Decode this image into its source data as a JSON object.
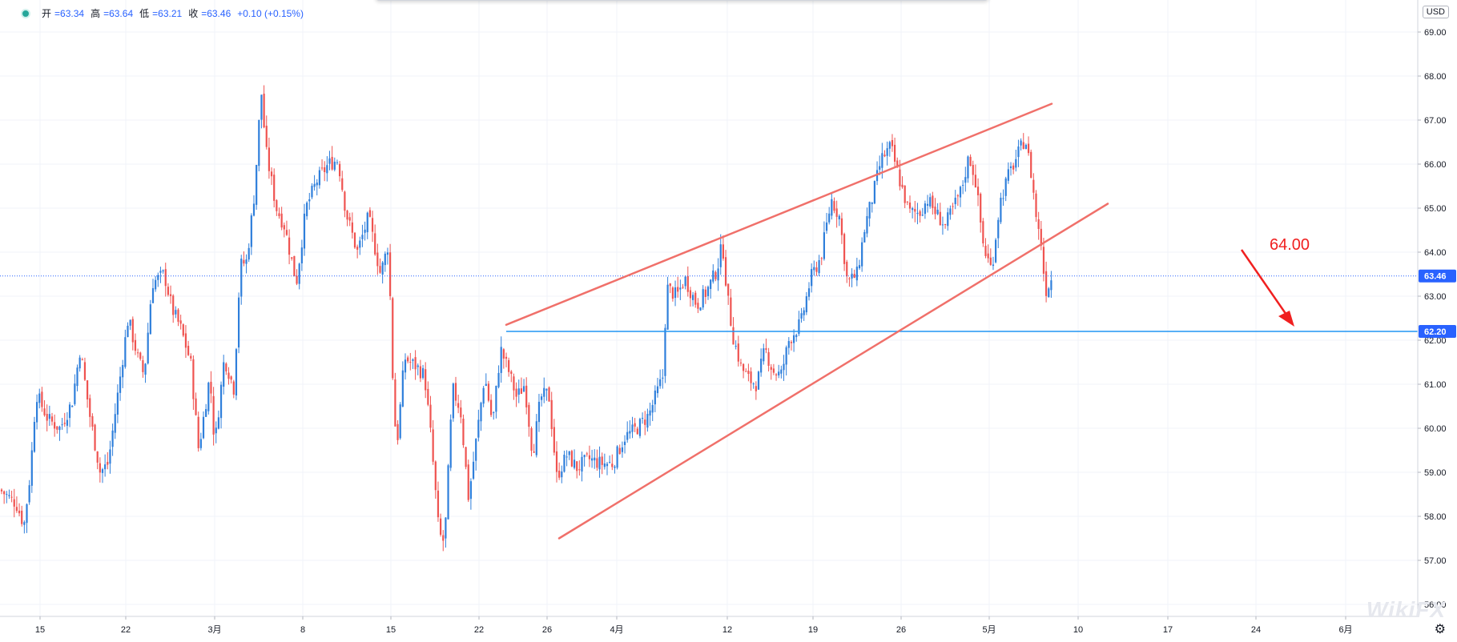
{
  "header": {
    "open_label": "开",
    "open": "=63.34",
    "high_label": "高",
    "high": "=63.64",
    "low_label": "低",
    "low": "=63.21",
    "close_label": "收",
    "close": "=63.46",
    "change": "+0.10 (+0.15%)"
  },
  "currency": "USD",
  "annotation_text": "64.00",
  "icons": {
    "status": "status-dot-icon",
    "settings": "gear-icon",
    "arrow": "arrow-down-right-icon"
  },
  "watermark_text": "WikiFX",
  "colors": {
    "up": "#2f7fdb",
    "down": "#ef5350",
    "trendline": "#f0706a",
    "support": "#2196f3",
    "annotation": "#f02020"
  },
  "chart_data": {
    "type": "candlestick",
    "x_tick_labels": [
      "15",
      "22",
      "3月",
      "8",
      "15",
      "22",
      "26",
      "4月",
      "12",
      "19",
      "26",
      "5月",
      "10",
      "17",
      "24",
      "6月"
    ],
    "y_ticks": [
      "69.00",
      "68.00",
      "67.00",
      "66.00",
      "65.00",
      "64.00",
      "63.00",
      "62.00",
      "61.00",
      "60.00",
      "59.00",
      "58.00",
      "57.00",
      "56.00"
    ],
    "ylim": [
      55.6,
      69.3
    ],
    "current_price": 63.46,
    "current_price_label": "63.46",
    "support_level": 62.2,
    "support_label": "62.20",
    "trendlines": [
      {
        "name": "upper",
        "from": [
          632,
          62.35
        ],
        "to": [
          1313,
          67.37
        ]
      },
      {
        "name": "lower",
        "from": [
          698,
          57.5
        ],
        "to": [
          1383,
          65.1
        ]
      }
    ],
    "close_path": [
      [
        0,
        58.6
      ],
      [
        20,
        58.3
      ],
      [
        30,
        57.8
      ],
      [
        38,
        59.0
      ],
      [
        45,
        60.8
      ],
      [
        60,
        60.2
      ],
      [
        75,
        60.0
      ],
      [
        90,
        60.6
      ],
      [
        100,
        61.8
      ],
      [
        112,
        60.3
      ],
      [
        125,
        59.0
      ],
      [
        135,
        59.2
      ],
      [
        148,
        60.9
      ],
      [
        160,
        62.5
      ],
      [
        172,
        61.6
      ],
      [
        180,
        61.2
      ],
      [
        190,
        63.3
      ],
      [
        205,
        63.5
      ],
      [
        215,
        62.7
      ],
      [
        225,
        62.3
      ],
      [
        238,
        61.5
      ],
      [
        248,
        59.5
      ],
      [
        262,
        61.2
      ],
      [
        268,
        59.6
      ],
      [
        280,
        61.6
      ],
      [
        292,
        60.9
      ],
      [
        300,
        63.7
      ],
      [
        308,
        63.8
      ],
      [
        318,
        65.4
      ],
      [
        326,
        67.7
      ],
      [
        332,
        66.3
      ],
      [
        345,
        65.0
      ],
      [
        355,
        64.6
      ],
      [
        370,
        63.3
      ],
      [
        382,
        65.0
      ],
      [
        395,
        65.6
      ],
      [
        410,
        66.0
      ],
      [
        422,
        66.1
      ],
      [
        432,
        64.9
      ],
      [
        446,
        64.0
      ],
      [
        460,
        64.8
      ],
      [
        475,
        63.5
      ],
      [
        485,
        64.2
      ],
      [
        490,
        61.3
      ],
      [
        495,
        59.5
      ],
      [
        505,
        61.6
      ],
      [
        520,
        61.4
      ],
      [
        530,
        61.2
      ],
      [
        538,
        59.8
      ],
      [
        548,
        57.6
      ],
      [
        555,
        57.4
      ],
      [
        565,
        60.9
      ],
      [
        575,
        60.4
      ],
      [
        585,
        58.4
      ],
      [
        595,
        59.8
      ],
      [
        605,
        61.2
      ],
      [
        615,
        60.1
      ],
      [
        625,
        61.8
      ],
      [
        635,
        61.3
      ],
      [
        645,
        60.7
      ],
      [
        655,
        61.0
      ],
      [
        665,
        59.4
      ],
      [
        675,
        60.7
      ],
      [
        685,
        60.8
      ],
      [
        695,
        58.9
      ],
      [
        708,
        59.4
      ],
      [
        720,
        59.1
      ],
      [
        735,
        59.3
      ],
      [
        750,
        59.2
      ],
      [
        765,
        59.2
      ],
      [
        780,
        59.8
      ],
      [
        795,
        60.0
      ],
      [
        810,
        60.3
      ],
      [
        822,
        60.9
      ],
      [
        828,
        61.2
      ],
      [
        832,
        63.2
      ],
      [
        845,
        63.0
      ],
      [
        855,
        63.4
      ],
      [
        870,
        62.8
      ],
      [
        882,
        63.1
      ],
      [
        895,
        63.6
      ],
      [
        902,
        64.2
      ],
      [
        908,
        63.0
      ],
      [
        915,
        62.1
      ],
      [
        925,
        61.4
      ],
      [
        935,
        61.1
      ],
      [
        945,
        61.0
      ],
      [
        955,
        61.8
      ],
      [
        965,
        61.3
      ],
      [
        975,
        61.2
      ],
      [
        985,
        62.0
      ],
      [
        1000,
        62.4
      ],
      [
        1012,
        63.4
      ],
      [
        1025,
        63.9
      ],
      [
        1038,
        65.2
      ],
      [
        1048,
        64.8
      ],
      [
        1058,
        63.3
      ],
      [
        1070,
        63.5
      ],
      [
        1080,
        64.6
      ],
      [
        1090,
        65.3
      ],
      [
        1100,
        66.1
      ],
      [
        1112,
        66.4
      ],
      [
        1122,
        65.7
      ],
      [
        1135,
        64.9
      ],
      [
        1148,
        64.9
      ],
      [
        1158,
        65.2
      ],
      [
        1168,
        64.9
      ],
      [
        1180,
        64.6
      ],
      [
        1190,
        65.0
      ],
      [
        1200,
        65.4
      ],
      [
        1210,
        66.2
      ],
      [
        1218,
        65.6
      ],
      [
        1228,
        64.1
      ],
      [
        1238,
        63.6
      ],
      [
        1248,
        65.1
      ],
      [
        1258,
        65.7
      ],
      [
        1268,
        66.1
      ],
      [
        1280,
        66.6
      ],
      [
        1288,
        65.7
      ],
      [
        1295,
        64.6
      ],
      [
        1300,
        64.2
      ],
      [
        1305,
        63.1
      ],
      [
        1310,
        63.3
      ],
      [
        1315,
        63.46
      ]
    ],
    "markers": [
      {
        "x": 0,
        "label": ""
      }
    ]
  }
}
